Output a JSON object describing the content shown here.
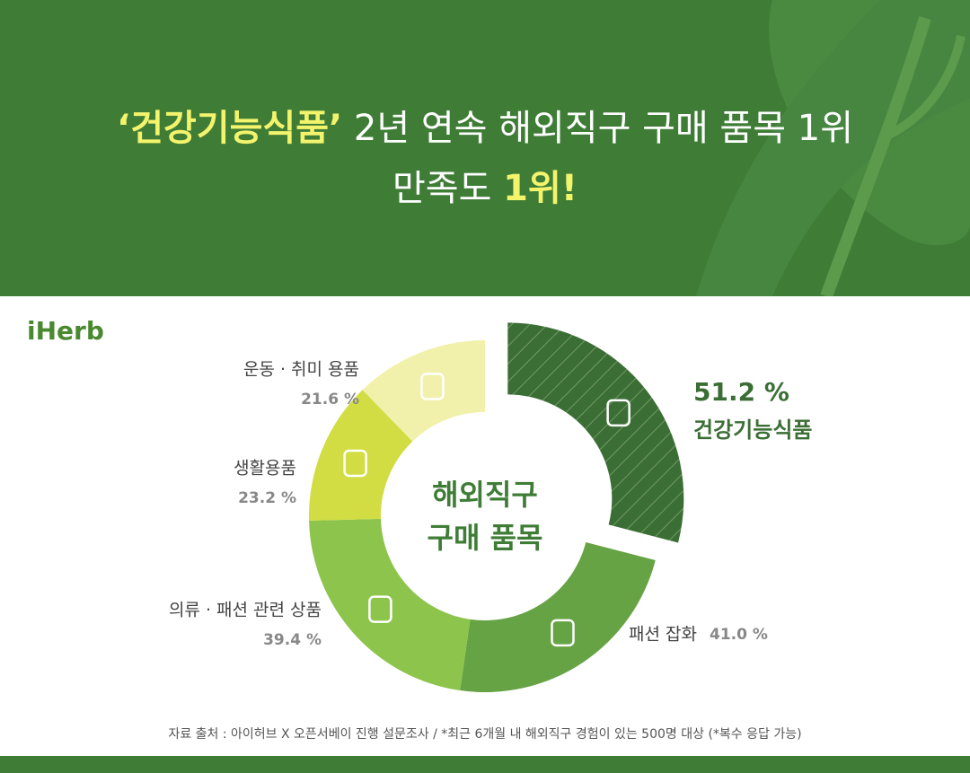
{
  "header": {
    "line1": [
      "‘건강기능식품’",
      "2년 연속 해외직구 구매 품목 1위"
    ],
    "line2": [
      "만족도",
      "1위!"
    ]
  },
  "logo": "iHerb",
  "chart_data": {
    "type": "donut",
    "center_label": [
      "해외직구",
      "구매 품목"
    ],
    "categories": [
      "건강기능식품",
      "패션 잡화",
      "의류 · 패션 관련 상품",
      "생활용품",
      "운동 · 취미 용품"
    ],
    "values": [
      51.2,
      41.0,
      39.4,
      23.2,
      21.6
    ],
    "value_labels": [
      "51.2 %",
      "41.0 %",
      "39.4 %",
      "23.2 %",
      "21.6 %"
    ],
    "colors": [
      "#3b6e35",
      "#66a344",
      "#8cc44c",
      "#d2dd43",
      "#f2f1ac"
    ]
  },
  "footer": "자료 출처 : 아이허브 X 오픈서베이 진행 설문조사  /  *최근 6개월 내 해외직구 경험이 있는 500명 대상 (*복수 응답 가능)"
}
